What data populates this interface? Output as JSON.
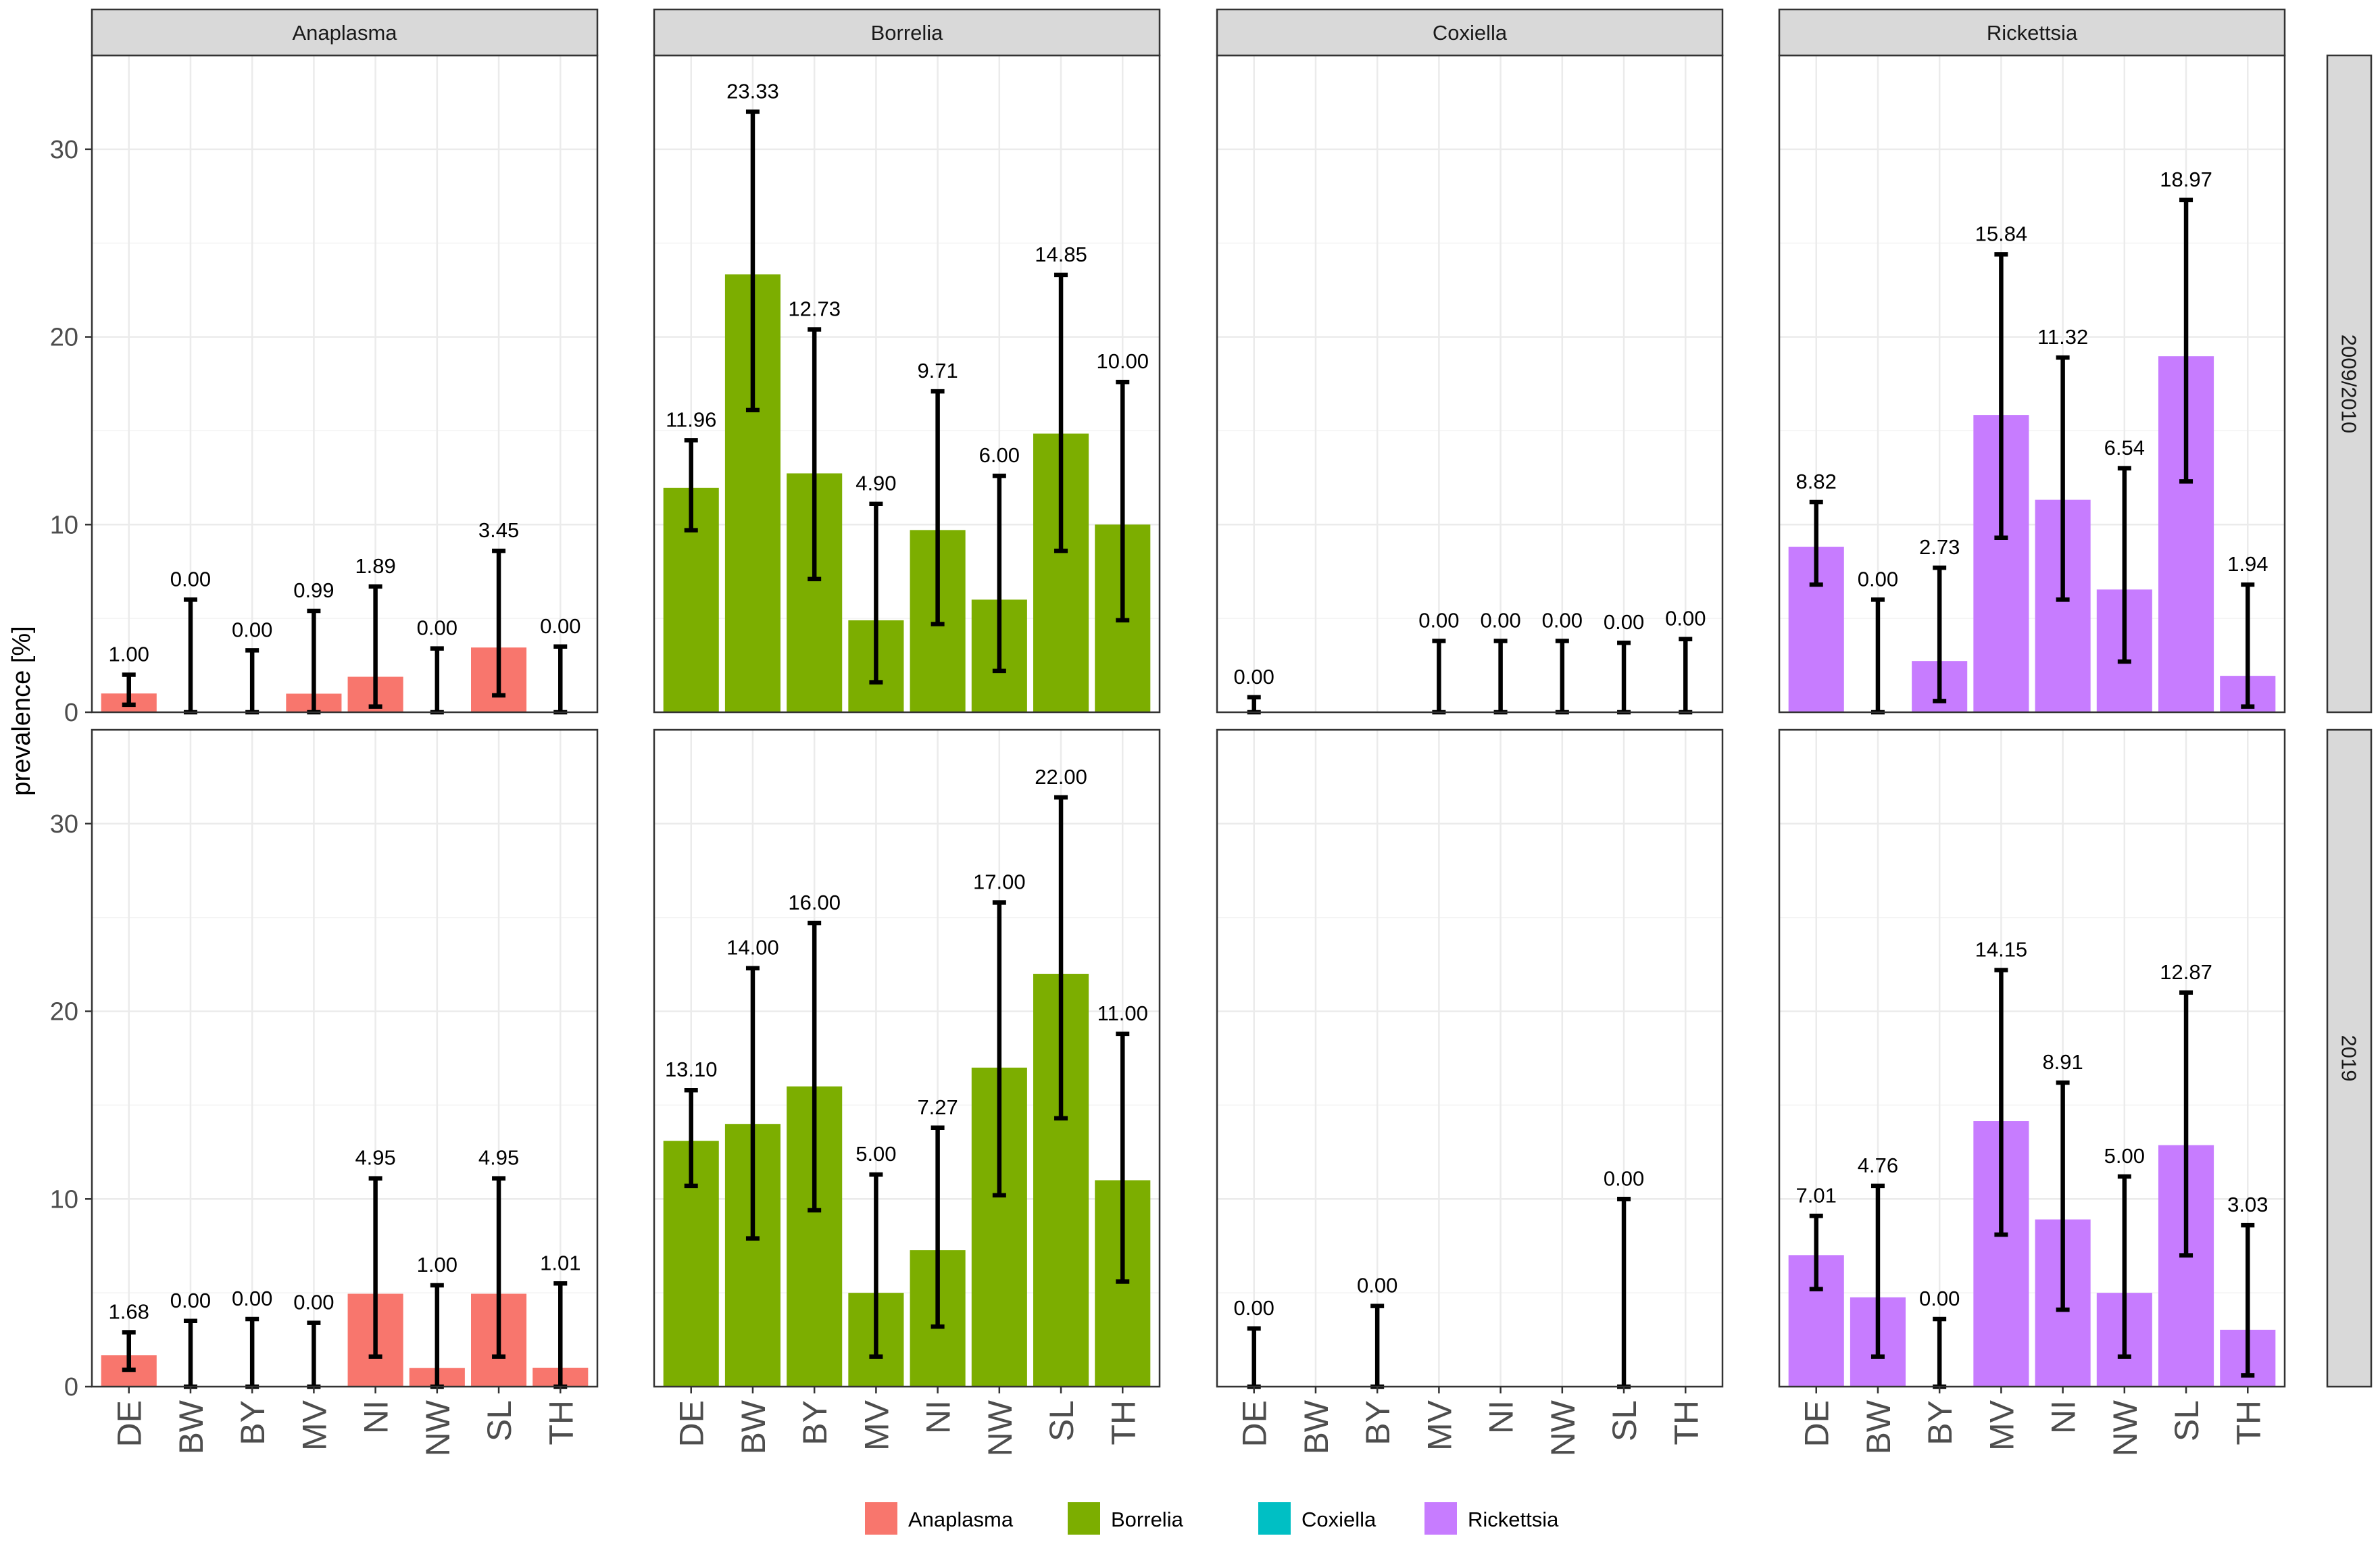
{
  "chart_data": {
    "type": "bar",
    "ylabel": "prevalence [%]",
    "xlabel": "",
    "ylim": [
      0,
      35
    ],
    "yticks": [
      0,
      10,
      20,
      30
    ],
    "categories": [
      "DE",
      "BW",
      "BY",
      "MV",
      "NI",
      "NW",
      "SL",
      "TH"
    ],
    "pathogens": [
      "Anaplasma",
      "Borrelia",
      "Coxiella",
      "Rickettsia"
    ],
    "periods": [
      "2009/2010",
      "2019"
    ],
    "colors": {
      "Anaplasma": "#F8766D",
      "Borrelia": "#7CAE00",
      "Coxiella": "#00BFC4",
      "Rickettsia": "#C77CFF"
    },
    "legend": {
      "position": "bottom"
    },
    "panels": [
      {
        "period": "2009/2010",
        "pathogen": "Anaplasma",
        "values": [
          1.0,
          0.0,
          0.0,
          0.99,
          1.89,
          0.0,
          3.45,
          0.0
        ],
        "labels": [
          "1.00",
          "0.00",
          "0.00",
          "0.99",
          "1.89",
          "0.00",
          "3.45",
          "0.00"
        ],
        "err_low": [
          0.4,
          0,
          0,
          0,
          0.3,
          0,
          0.9,
          0
        ],
        "err_high": [
          2.0,
          6.0,
          3.3,
          5.4,
          6.7,
          3.4,
          8.6,
          3.5
        ]
      },
      {
        "period": "2009/2010",
        "pathogen": "Borrelia",
        "values": [
          11.96,
          23.33,
          12.73,
          4.9,
          9.71,
          6.0,
          14.85,
          10.0
        ],
        "labels": [
          "11.96",
          "23.33",
          "12.73",
          "4.90",
          "9.71",
          "6.00",
          "14.85",
          "10.00"
        ],
        "err_low": [
          9.7,
          16.1,
          7.1,
          1.6,
          4.7,
          2.2,
          8.6,
          4.9
        ],
        "err_high": [
          14.5,
          32.0,
          20.4,
          11.1,
          17.1,
          12.6,
          23.3,
          17.6
        ]
      },
      {
        "period": "2009/2010",
        "pathogen": "Coxiella",
        "values": [
          0.0,
          null,
          null,
          0.0,
          0.0,
          0.0,
          0.0,
          0.0
        ],
        "labels": [
          "0.00",
          null,
          null,
          "0.00",
          "0.00",
          "0.00",
          "0.00",
          "0.00"
        ],
        "err_low": [
          0,
          null,
          null,
          0,
          0,
          0,
          0,
          0
        ],
        "err_high": [
          0.8,
          null,
          null,
          3.8,
          3.8,
          3.8,
          3.7,
          3.9
        ]
      },
      {
        "period": "2009/2010",
        "pathogen": "Rickettsia",
        "values": [
          8.82,
          0.0,
          2.73,
          15.84,
          11.32,
          6.54,
          18.97,
          1.94
        ],
        "labels": [
          "8.82",
          "0.00",
          "2.73",
          "15.84",
          "11.32",
          "6.54",
          "18.97",
          "1.94"
        ],
        "err_low": [
          6.8,
          0,
          0.6,
          9.3,
          6.0,
          2.7,
          12.3,
          0.3
        ],
        "err_high": [
          11.2,
          6.0,
          7.7,
          24.4,
          18.9,
          13.0,
          27.3,
          6.8
        ]
      },
      {
        "period": "2019",
        "pathogen": "Anaplasma",
        "values": [
          1.68,
          0.0,
          0.0,
          0.0,
          4.95,
          1.0,
          4.95,
          1.01
        ],
        "labels": [
          "1.68",
          "0.00",
          "0.00",
          "0.00",
          "4.95",
          "1.00",
          "4.95",
          "1.01"
        ],
        "err_low": [
          0.9,
          0,
          0,
          0,
          1.6,
          0,
          1.6,
          0
        ],
        "err_high": [
          2.9,
          3.5,
          3.6,
          3.4,
          11.1,
          5.4,
          11.1,
          5.5
        ]
      },
      {
        "period": "2019",
        "pathogen": "Borrelia",
        "values": [
          13.1,
          14.0,
          16.0,
          5.0,
          7.27,
          17.0,
          22.0,
          11.0
        ],
        "labels": [
          "13.10",
          "14.00",
          "16.00",
          "5.00",
          "7.27",
          "17.00",
          "22.00",
          "11.00"
        ],
        "err_low": [
          10.7,
          7.9,
          9.4,
          1.6,
          3.2,
          10.2,
          14.3,
          5.6
        ],
        "err_high": [
          15.8,
          22.3,
          24.7,
          11.3,
          13.8,
          25.8,
          31.4,
          18.8
        ]
      },
      {
        "period": "2019",
        "pathogen": "Coxiella",
        "values": [
          0.0,
          null,
          0.0,
          null,
          null,
          null,
          0.0,
          null
        ],
        "labels": [
          "0.00",
          null,
          "0.00",
          null,
          null,
          null,
          "0.00",
          null
        ],
        "err_low": [
          0,
          null,
          0,
          null,
          null,
          null,
          0,
          null
        ],
        "err_high": [
          3.1,
          null,
          4.3,
          null,
          null,
          null,
          10.0,
          null
        ]
      },
      {
        "period": "2019",
        "pathogen": "Rickettsia",
        "values": [
          7.01,
          4.76,
          0.0,
          14.15,
          8.91,
          5.0,
          12.87,
          3.03
        ],
        "labels": [
          "7.01",
          "4.76",
          "0.00",
          "14.15",
          "8.91",
          "5.00",
          "12.87",
          "3.03"
        ],
        "err_low": [
          5.2,
          1.6,
          0,
          8.1,
          4.1,
          1.6,
          7.0,
          0.6
        ],
        "err_high": [
          9.1,
          10.7,
          3.6,
          22.2,
          16.2,
          11.2,
          21.0,
          8.6
        ]
      }
    ]
  }
}
